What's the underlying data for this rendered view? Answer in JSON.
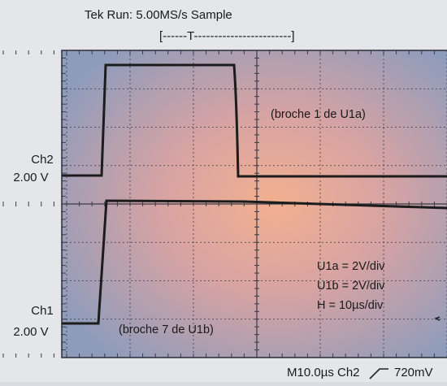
{
  "header": {
    "title": "Tek Run: 5.00MS/s   Sample",
    "trigger_bar": "[------T------------------------]"
  },
  "channels": [
    {
      "name": "Ch2",
      "scale": "2.00 V"
    },
    {
      "name": "Ch1",
      "scale": "2.00 V"
    }
  ],
  "annotations": {
    "trace_top": "(broche 1 de U1a)",
    "trace_bottom": "(broche 7 de U1b)",
    "scales": [
      "U1a = 2V/div",
      "U1b = 2V/div",
      "H = 10µs/div"
    ]
  },
  "footer": {
    "timebase": "M10.0µs Ch2",
    "trigger_level": "720mV"
  }
}
